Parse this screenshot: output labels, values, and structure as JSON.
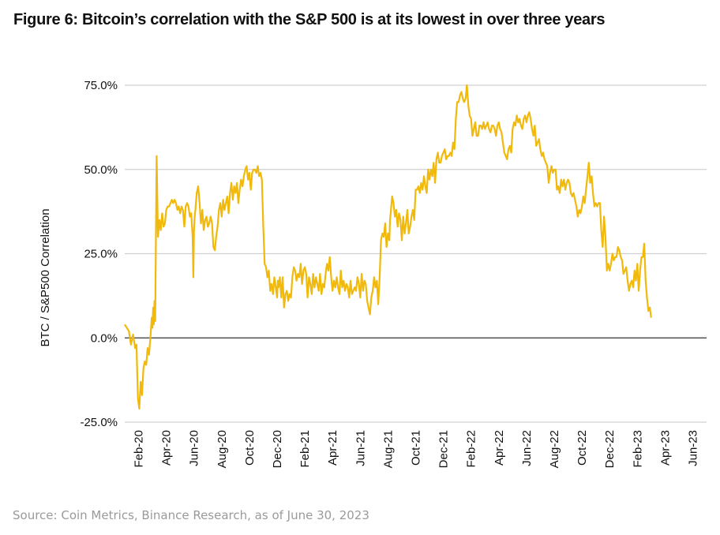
{
  "chart_data": {
    "type": "line",
    "title": "Figure 6: Bitcoin’s correlation with the S&P 500 is at its lowest in over three years",
    "xlabel": "",
    "ylabel": "BTC / S&P500 Correlation",
    "ylim": [
      -25,
      75
    ],
    "yticks": [
      -25,
      0,
      25,
      50,
      75
    ],
    "ytick_labels": [
      "-25.0%",
      "0.0%",
      "25.0%",
      "50.0%",
      "75.0%"
    ],
    "xlim": [
      "2020-01-01",
      "2023-06-30"
    ],
    "xtick_labels": [
      "Feb-20",
      "Apr-20",
      "Jun-20",
      "Aug-20",
      "Oct-20",
      "Dec-20",
      "Feb-21",
      "Apr-21",
      "Jun-21",
      "Aug-21",
      "Oct-21",
      "Dec-21",
      "Feb-22",
      "Apr-22",
      "Jun-22",
      "Aug-22",
      "Oct-22",
      "Dec-22",
      "Feb-23",
      "Apr-23",
      "Jun-23"
    ],
    "grid": true,
    "legend": "none",
    "source": "Source: Coin Metrics, Binance Research, as of June 30, 2023",
    "series": [
      {
        "name": "BTC / S&P500 Correlation",
        "color": "#F0B90B",
        "x_months": [
          0.0,
          0.15,
          0.3,
          0.45,
          0.6,
          0.75,
          0.85,
          0.95,
          1.05,
          1.15,
          1.25,
          1.35,
          1.45,
          1.55,
          1.65,
          1.75,
          1.85,
          1.95,
          2.0,
          2.05,
          2.1,
          2.15,
          2.2,
          2.25,
          2.3,
          2.4,
          2.5,
          2.6,
          2.7,
          2.8,
          2.9,
          3.0,
          3.1,
          3.2,
          3.3,
          3.4,
          3.5,
          3.6,
          3.7,
          3.8,
          3.9,
          4.0,
          4.1,
          4.2,
          4.3,
          4.4,
          4.5,
          4.6,
          4.7,
          4.8,
          4.9,
          4.95,
          5.0,
          5.05,
          5.1,
          5.2,
          5.3,
          5.4,
          5.5,
          5.6,
          5.7,
          5.8,
          5.9,
          6.0,
          6.1,
          6.2,
          6.3,
          6.4,
          6.5,
          6.6,
          6.7,
          6.8,
          6.9,
          7.0,
          7.1,
          7.2,
          7.3,
          7.4,
          7.5,
          7.6,
          7.7,
          7.8,
          7.9,
          8.0,
          8.1,
          8.2,
          8.3,
          8.4,
          8.5,
          8.6,
          8.7,
          8.8,
          8.9,
          9.0,
          9.1,
          9.2,
          9.3,
          9.4,
          9.5,
          9.6,
          9.7,
          9.8,
          9.9,
          10.0,
          10.1,
          10.2,
          10.3,
          10.4,
          10.5,
          10.6,
          10.7,
          10.8,
          10.9,
          11.0,
          11.05,
          11.1,
          11.2,
          11.3,
          11.4,
          11.5,
          11.6,
          11.7,
          11.8,
          11.9,
          12.0,
          12.1,
          12.2,
          12.3,
          12.4,
          12.5,
          12.6,
          12.7,
          12.8,
          12.9,
          13.0,
          13.1,
          13.2,
          13.3,
          13.4,
          13.5,
          13.6,
          13.7,
          13.8,
          13.9,
          14.0,
          14.1,
          14.2,
          14.3,
          14.4,
          14.5,
          14.6,
          14.7,
          14.8,
          14.9,
          15.0,
          15.1,
          15.2,
          15.3,
          15.4,
          15.5,
          15.6,
          15.7,
          15.8,
          15.9,
          16.0,
          16.1,
          16.2,
          16.3,
          16.4,
          16.5,
          16.6,
          16.7,
          16.8,
          16.9,
          17.0,
          17.1,
          17.2,
          17.3,
          17.4,
          17.5,
          17.6,
          17.7,
          17.8,
          17.9,
          18.0,
          18.1,
          18.2,
          18.3,
          18.4,
          18.5,
          18.6,
          18.7,
          18.8,
          18.9,
          19.0,
          19.1,
          19.15,
          19.2,
          19.3,
          19.4,
          19.5,
          19.6,
          19.7,
          19.8,
          19.9,
          20.0,
          20.1,
          20.2,
          20.3,
          20.4,
          20.5,
          20.6,
          20.7,
          20.8,
          20.9,
          21.0,
          21.1,
          21.2,
          21.3,
          21.4,
          21.5,
          21.6,
          21.7,
          21.8,
          21.9,
          22.0,
          22.1,
          22.2,
          22.3,
          22.4,
          22.5,
          22.6,
          22.7,
          22.8,
          22.9,
          23.0,
          23.1,
          23.2,
          23.3,
          23.4,
          23.5,
          23.6,
          23.7,
          23.8,
          23.9,
          24.0,
          24.1,
          24.2,
          24.3,
          24.4,
          24.5,
          24.6,
          24.7,
          24.8,
          24.9,
          25.0,
          25.1,
          25.2,
          25.3,
          25.4,
          25.5,
          25.6,
          25.7,
          25.8,
          25.9,
          26.0,
          26.1,
          26.2,
          26.3,
          26.4,
          26.5,
          26.6,
          26.7,
          26.8,
          26.9,
          27.0,
          27.1,
          27.2,
          27.3,
          27.4,
          27.5,
          27.6,
          27.7,
          27.8,
          27.9,
          28.0,
          28.1,
          28.2,
          28.3,
          28.4,
          28.5,
          28.6,
          28.7,
          28.8,
          28.9,
          29.0,
          29.1,
          29.2,
          29.3,
          29.4,
          29.5,
          29.6,
          29.7,
          29.8,
          29.9,
          30.0,
          30.1,
          30.2,
          30.3,
          30.4,
          30.5,
          30.6,
          30.7,
          30.8,
          30.9,
          31.0,
          31.1,
          31.2,
          31.3,
          31.4,
          31.5,
          31.6,
          31.7,
          31.8,
          31.9,
          32.0,
          32.1,
          32.2,
          32.3,
          32.4,
          32.5,
          32.6,
          32.7,
          32.8,
          32.9,
          33.0,
          33.1,
          33.2,
          33.3,
          33.4,
          33.5,
          33.6,
          33.7,
          33.8,
          33.9,
          34.0,
          34.1,
          34.2,
          34.3,
          34.4,
          34.5,
          34.6,
          34.7,
          34.8,
          34.9,
          35.0,
          35.1,
          35.2,
          35.3,
          35.4,
          35.5,
          35.6,
          35.7,
          35.8,
          35.9,
          36.0,
          36.1,
          36.2,
          36.3,
          36.4,
          36.5,
          36.6,
          36.7,
          36.8,
          36.9,
          37.0,
          37.1,
          37.2,
          37.3,
          37.4,
          37.5,
          37.6,
          37.7,
          37.8,
          37.9,
          38.0,
          38.1,
          38.2,
          38.3,
          38.4,
          38.5,
          38.6,
          38.7,
          38.8,
          38.9,
          39.0,
          39.1,
          39.2,
          39.3,
          39.4,
          39.5,
          39.6,
          39.7,
          39.8,
          39.9,
          40.0,
          40.1,
          40.2,
          40.3,
          40.4,
          40.5,
          40.6,
          40.7,
          40.8,
          40.9,
          41.0,
          41.1,
          41.2,
          41.3,
          41.4,
          41.5,
          41.6,
          41.7,
          41.8,
          41.9
        ],
        "values": [
          4,
          3,
          2,
          -2,
          1,
          -3,
          -2,
          -18,
          -21,
          -13,
          -17,
          -9,
          -7,
          -8,
          -3,
          -5,
          0,
          6,
          3,
          9,
          4,
          11,
          5,
          30,
          54,
          30,
          35,
          32,
          37,
          33,
          34,
          38,
          39,
          39,
          40,
          41,
          40,
          41,
          40,
          38,
          39,
          37,
          39,
          38,
          33,
          39,
          40,
          39,
          36,
          37,
          30,
          18,
          32,
          36,
          38,
          43,
          45,
          40,
          34,
          38,
          32,
          35,
          36,
          33,
          34,
          36,
          34,
          27,
          26,
          30,
          33,
          38,
          40,
          36,
          41,
          38,
          40,
          42,
          37,
          43,
          46,
          41,
          45,
          43,
          46,
          40,
          44,
          47,
          45,
          48,
          50,
          51,
          47,
          49,
          44,
          49,
          50,
          50,
          49,
          51,
          48,
          49,
          47,
          33,
          22,
          21,
          18,
          20,
          14,
          16,
          13,
          18,
          15,
          12,
          17,
          15,
          18,
          12,
          18,
          9,
          13,
          14,
          11,
          13,
          12,
          18,
          21,
          20,
          17,
          19,
          18,
          22,
          16,
          20,
          21,
          19,
          12,
          18,
          16,
          13,
          19,
          15,
          18,
          16,
          14,
          19,
          13,
          16,
          15,
          19,
          22,
          20,
          24,
          18,
          14,
          17,
          15,
          18,
          15,
          13,
          20,
          15,
          17,
          14,
          16,
          15,
          12,
          17,
          13,
          14,
          15,
          14,
          18,
          16,
          12,
          19,
          14,
          17,
          16,
          11,
          9,
          7,
          12,
          14,
          18,
          15,
          17,
          10,
          18,
          29,
          31,
          30,
          34,
          27,
          31,
          29,
          35,
          37,
          42,
          40,
          36,
          38,
          33,
          37,
          35,
          29,
          36,
          31,
          34,
          38,
          31,
          33,
          36,
          38,
          35,
          44,
          44,
          45,
          43,
          46,
          44,
          48,
          45,
          43,
          50,
          47,
          50,
          48,
          52,
          46,
          53,
          55,
          52,
          52,
          54,
          55,
          56,
          53,
          54,
          54,
          55,
          54,
          58,
          56,
          65,
          70,
          70,
          72,
          73,
          71,
          70,
          71,
          75,
          69,
          66,
          65,
          60,
          62,
          64,
          60,
          60,
          63,
          63,
          62,
          64,
          62,
          63,
          64,
          62,
          61,
          63,
          63,
          62,
          60,
          63,
          64,
          62,
          61,
          58,
          55,
          54,
          53,
          56,
          57,
          55,
          62,
          64,
          63,
          66,
          64,
          65,
          63,
          62,
          65,
          66,
          64,
          66,
          67,
          65,
          62,
          60,
          63,
          57,
          58,
          59,
          56,
          54,
          55,
          53,
          52,
          51,
          46,
          49,
          51,
          49,
          50,
          50,
          44,
          45,
          43,
          47,
          45,
          47,
          44,
          46,
          47,
          46,
          43,
          42,
          43,
          41,
          39,
          36,
          38,
          37,
          39,
          42,
          40,
          44,
          48,
          52,
          46,
          48,
          43,
          39,
          40,
          39,
          40,
          40,
          32,
          27,
          36,
          30,
          20,
          22,
          20,
          22,
          25,
          23,
          24,
          24,
          27,
          26,
          24,
          23,
          19,
          20,
          21,
          17,
          14,
          16,
          17,
          15,
          20,
          17,
          22,
          14,
          20,
          24,
          24,
          28,
          17,
          12,
          8,
          9,
          6
        ]
      }
    ]
  }
}
